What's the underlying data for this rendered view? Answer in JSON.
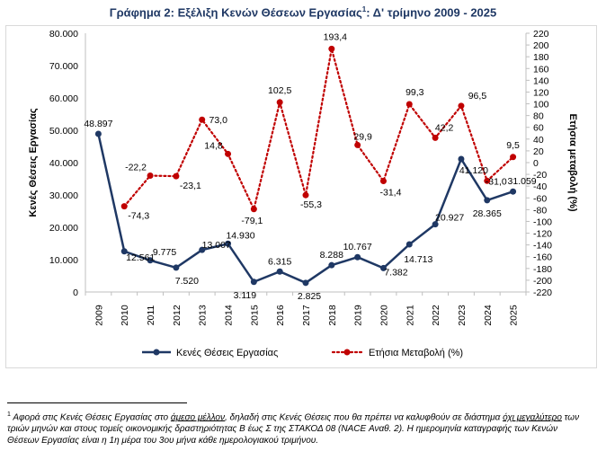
{
  "title": {
    "text": "Γράφημα 2: Εξέλιξη Κενών Θέσεων Εργασίας",
    "sup": "1",
    "suffix": ": Δ' τρίμηνο 2009 - 2025"
  },
  "chart_data": {
    "type": "line",
    "categories": [
      "2009",
      "2010",
      "2011",
      "2012",
      "2013",
      "2014",
      "2015",
      "2016",
      "2017",
      "2018",
      "2019",
      "2020",
      "2021",
      "2022",
      "2023",
      "2024",
      "2025"
    ],
    "series": [
      {
        "name": "Κενές Θέσεις Εργασίας",
        "axis": "left",
        "color": "#1f3864",
        "style": "solid",
        "values": [
          48897,
          12561,
          9775,
          7520,
          13007,
          14930,
          3119,
          6315,
          2825,
          8288,
          10767,
          7382,
          14713,
          20927,
          41120,
          28365,
          31059
        ],
        "labels": [
          "48.897",
          "12.561",
          "9.775",
          "7.520",
          "13.007",
          "14.930",
          "3.119",
          "6.315",
          "2.825",
          "8.288",
          "10.767",
          "7.382",
          "14.713",
          "20.927",
          "41.120",
          "28.365",
          "31.059"
        ]
      },
      {
        "name": "Ετήσια Μεταβολή (%)",
        "axis": "right",
        "color": "#c00000",
        "style": "dotted",
        "values": [
          null,
          -74.3,
          -22.2,
          -23.1,
          73.0,
          14.8,
          -79.1,
          102.5,
          -55.3,
          193.4,
          29.9,
          -31.4,
          99.3,
          42.2,
          96.5,
          -31.0,
          9.5
        ],
        "labels": [
          "",
          "-74,3",
          "-22,2",
          "-23,1",
          "73,0",
          "14,8",
          "-79,1",
          "102,5",
          "-55,3",
          "193,4",
          "29,9",
          "-31,4",
          "99,3",
          "42,2",
          "96,5",
          "-31,0",
          "9,5"
        ]
      }
    ],
    "y_left": {
      "label": "Κενές Θέσεις Εργασίας",
      "lim": [
        0,
        80000
      ],
      "ticks": [
        0,
        10000,
        20000,
        30000,
        40000,
        50000,
        60000,
        70000,
        80000
      ],
      "tick_labels": [
        "0",
        "10.000",
        "20.000",
        "30.000",
        "40.000",
        "50.000",
        "60.000",
        "70.000",
        "80.000"
      ]
    },
    "y_right": {
      "label": "Ετήσια μεταβολή (%)",
      "lim": [
        -220,
        220
      ],
      "ticks": [
        -220,
        -200,
        -180,
        -160,
        -140,
        -120,
        -100,
        -80,
        -60,
        -40,
        -20,
        0,
        20,
        40,
        60,
        80,
        100,
        120,
        140,
        160,
        180,
        200,
        220
      ],
      "tick_labels": [
        "-220",
        "-200",
        "-180",
        "-160",
        "-140",
        "-120",
        "-100",
        "-80",
        "-60",
        "-40",
        "-20",
        "0",
        "20",
        "40",
        "60",
        "80",
        "100",
        "120",
        "140",
        "160",
        "180",
        "200",
        "220"
      ]
    },
    "grid": false,
    "legend": "bottom"
  },
  "footnote": {
    "marker": "1",
    "parts": [
      {
        "t": " Αφορά στις Κενές Θέσεις Εργασίας στο ",
        "u": false
      },
      {
        "t": "άμεσο μέλλον",
        "u": true
      },
      {
        "t": ", δηλαδή στις Κενές Θέσεις που θα πρέπει να καλυφθούν σε διάστημα ",
        "u": false
      },
      {
        "t": "όχι μεγαλύτερο",
        "u": true
      },
      {
        "t": " των τριών μηνών και στους τομείς οικονομικής δραστηριότητας Β έως Σ της ΣΤΑΚΟΔ 08 (NACE Αναθ. 2). Η ημερομηνία καταγραφής των Κενών Θέσεων Εργασίας είναι η 1η μέρα του 3ου μήνα κάθε ημερολογιακού τριμήνου.",
        "u": false
      }
    ]
  }
}
